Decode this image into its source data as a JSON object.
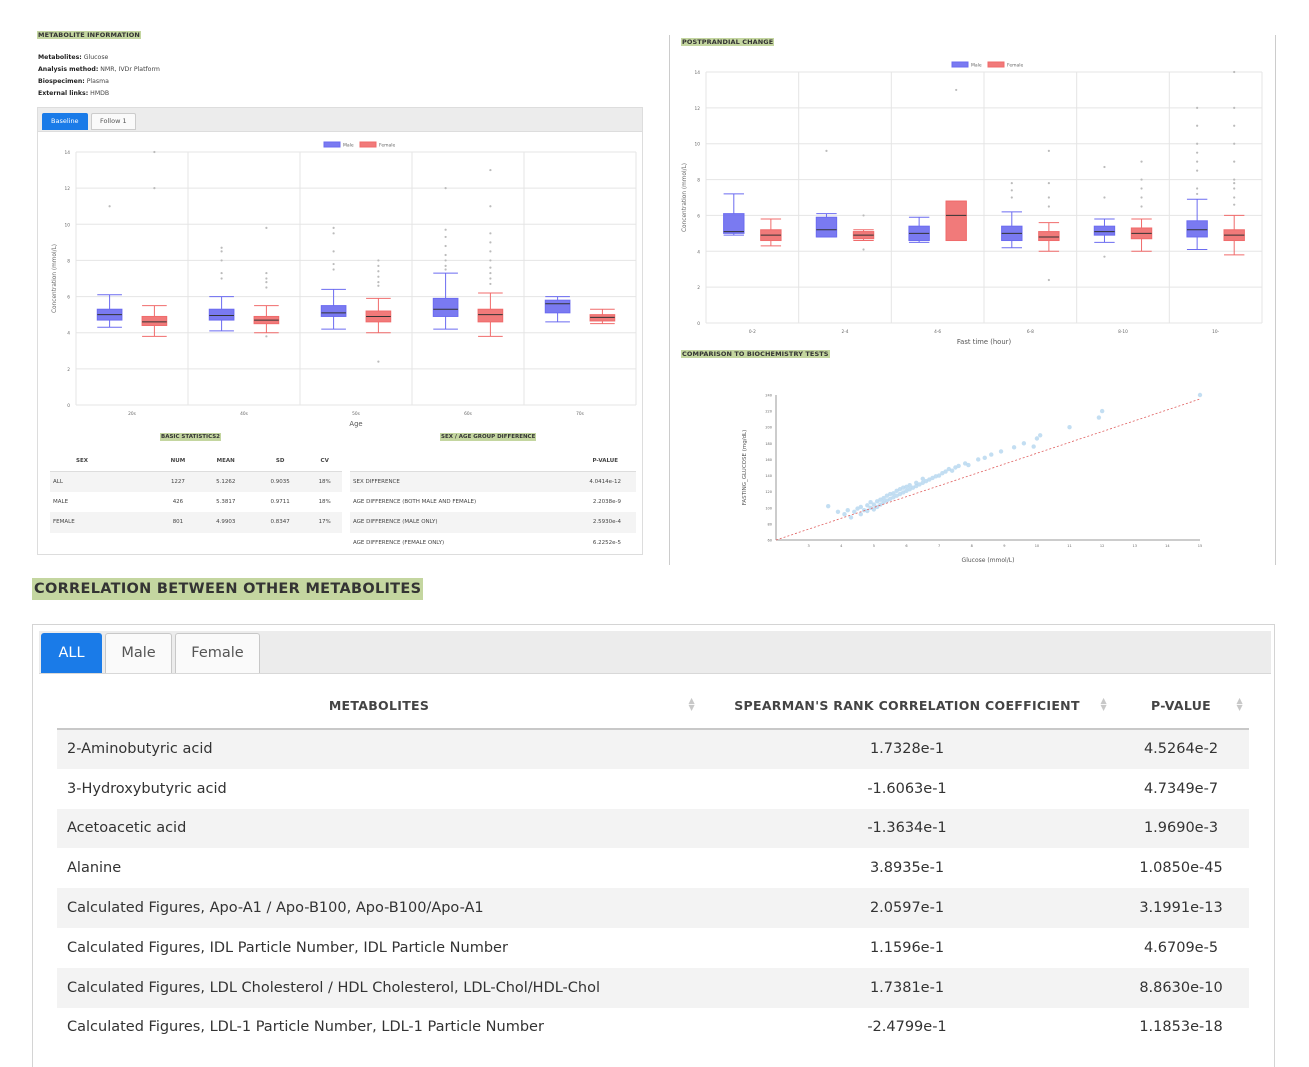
{
  "metabolite_info": {
    "title": "METABOLITE INFORMATION",
    "metabolites_label": "Metabolites:",
    "metabolites_value": "Glucose",
    "method_label": "Analysis method:",
    "method_value": "NMR, IVDr Platform",
    "biospecimen_label": "Biospecimen:",
    "biospecimen_value": "Plasma",
    "links_label": "External links:",
    "links_value": "HMDB"
  },
  "left_tabs": [
    {
      "label": "Baseline",
      "active": true
    },
    {
      "label": "Follow 1",
      "active": false
    }
  ],
  "colors": {
    "male": "#6b6bf0",
    "female": "#f06b6b",
    "accent": "#1a7be8",
    "highlight": "#c4d6a0",
    "scatter": "#b9d8f0",
    "regression": "#e06060"
  },
  "chart_data": [
    {
      "type": "box",
      "id": "age-boxplot",
      "xlabel": "Age",
      "ylabel": "Concentration (mmol/L)",
      "ylim": [
        0,
        14
      ],
      "y_ticks": [
        "0",
        "2",
        "4",
        "6",
        "8",
        "10",
        "12",
        "14"
      ],
      "categories": [
        "20s",
        "40s",
        "50s",
        "60s",
        "70s"
      ],
      "legend": [
        "Male",
        "Female"
      ],
      "series": [
        {
          "name": "Male",
          "boxes": [
            {
              "min": 4.3,
              "q1": 4.7,
              "median": 5.0,
              "q3": 5.3,
              "max": 6.1,
              "outliers": [
                11.0
              ]
            },
            {
              "min": 4.1,
              "q1": 4.7,
              "median": 4.95,
              "q3": 5.3,
              "max": 6.0,
              "outliers": [
                8.0,
                8.5,
                8.7,
                7.3,
                7.0
              ]
            },
            {
              "min": 4.2,
              "q1": 4.9,
              "median": 5.1,
              "q3": 5.5,
              "max": 6.4,
              "outliers": [
                9.8,
                9.5,
                8.5,
                7.8,
                7.5
              ]
            },
            {
              "min": 4.2,
              "q1": 4.9,
              "median": 5.3,
              "q3": 5.9,
              "max": 7.3,
              "outliers": [
                12.0,
                9.7,
                9.3,
                8.8,
                8.3,
                8.0,
                7.7,
                7.5
              ]
            },
            {
              "min": 4.6,
              "q1": 5.1,
              "median": 5.6,
              "q3": 5.8,
              "max": 6.0,
              "outliers": []
            }
          ]
        },
        {
          "name": "Female",
          "boxes": [
            {
              "min": 3.8,
              "q1": 4.4,
              "median": 4.6,
              "q3": 4.9,
              "max": 5.5,
              "outliers": [
                14.0,
                12.0
              ]
            },
            {
              "min": 4.0,
              "q1": 4.5,
              "median": 4.7,
              "q3": 4.9,
              "max": 5.5,
              "outliers": [
                9.8,
                7.3,
                7.0,
                6.8,
                6.5,
                3.8
              ]
            },
            {
              "min": 4.0,
              "q1": 4.6,
              "median": 4.9,
              "q3": 5.2,
              "max": 5.9,
              "outliers": [
                8.0,
                7.7,
                7.4,
                7.1,
                6.8,
                6.6,
                2.4
              ]
            },
            {
              "min": 3.8,
              "q1": 4.6,
              "median": 5.0,
              "q3": 5.3,
              "max": 6.2,
              "outliers": [
                13.0,
                11.0,
                9.5,
                9.0,
                8.5,
                8.0,
                7.6,
                7.3,
                7.0,
                6.7
              ]
            },
            {
              "min": 4.5,
              "q1": 4.65,
              "median": 4.85,
              "q3": 5.0,
              "max": 5.3,
              "outliers": []
            }
          ]
        }
      ]
    },
    {
      "type": "box",
      "id": "postprandial-boxplot",
      "title": "POSTPRANDIAL CHANGE",
      "xlabel": "Fast time (hour)",
      "ylabel": "Concentration (mmol/L)",
      "ylim": [
        0,
        14
      ],
      "y_ticks": [
        "0",
        "2",
        "4",
        "6",
        "8",
        "10",
        "12",
        "14"
      ],
      "categories": [
        "0-2",
        "2-4",
        "4-6",
        "6-8",
        "8-10",
        "10-"
      ],
      "legend": [
        "Male",
        "Female"
      ],
      "series": [
        {
          "name": "Male",
          "boxes": [
            {
              "min": 4.9,
              "q1": 5.0,
              "median": 5.1,
              "q3": 6.1,
              "max": 7.2,
              "outliers": []
            },
            {
              "min": 4.8,
              "q1": 4.8,
              "median": 5.2,
              "q3": 5.9,
              "max": 6.1,
              "outliers": [
                9.6
              ]
            },
            {
              "min": 4.5,
              "q1": 4.6,
              "median": 5.0,
              "q3": 5.4,
              "max": 5.9,
              "outliers": []
            },
            {
              "min": 4.2,
              "q1": 4.6,
              "median": 5.0,
              "q3": 5.4,
              "max": 6.2,
              "outliers": [
                7.8,
                7.4,
                7.0
              ]
            },
            {
              "min": 4.5,
              "q1": 4.9,
              "median": 5.1,
              "q3": 5.4,
              "max": 5.8,
              "outliers": [
                8.7,
                7.0,
                3.7
              ]
            },
            {
              "min": 4.1,
              "q1": 4.8,
              "median": 5.2,
              "q3": 5.7,
              "max": 6.9,
              "outliers": [
                12.0,
                11.0,
                10.0,
                9.5,
                9.0,
                8.5,
                7.5,
                7.2
              ]
            }
          ]
        },
        {
          "name": "Female",
          "boxes": [
            {
              "min": 4.3,
              "q1": 4.6,
              "median": 4.9,
              "q3": 5.2,
              "max": 5.8,
              "outliers": []
            },
            {
              "min": 4.6,
              "q1": 4.7,
              "median": 4.9,
              "q3": 5.1,
              "max": 5.2,
              "outliers": [
                6.0,
                4.1
              ]
            },
            {
              "min": 4.6,
              "q1": 4.6,
              "median": 6.0,
              "q3": 6.8,
              "max": 6.8,
              "outliers": [
                13.0
              ]
            },
            {
              "min": 4.0,
              "q1": 4.6,
              "median": 4.8,
              "q3": 5.1,
              "max": 5.6,
              "outliers": [
                9.6,
                7.8,
                7.0,
                6.5,
                2.4
              ]
            },
            {
              "min": 4.0,
              "q1": 4.7,
              "median": 5.0,
              "q3": 5.3,
              "max": 5.8,
              "outliers": [
                9.0,
                8.0,
                7.5,
                7.0,
                6.5
              ]
            },
            {
              "min": 3.8,
              "q1": 4.6,
              "median": 4.9,
              "q3": 5.2,
              "max": 6.0,
              "outliers": [
                14.0,
                12.0,
                11.0,
                10.0,
                9.0,
                8.0,
                7.8,
                7.5,
                7.0,
                6.6
              ]
            }
          ]
        }
      ]
    },
    {
      "type": "scatter",
      "id": "biochem-scatter",
      "title": "COMPARISON TO BIOCHEMISTRY TESTS",
      "xlabel": "Glucose (mmol/L)",
      "ylabel": "FASTING_GLUCOSE (mg/dL)",
      "xlim": [
        2,
        15
      ],
      "ylim": [
        60,
        240
      ],
      "x_ticks": [
        "3",
        "4",
        "5",
        "6",
        "7",
        "8",
        "9",
        "10",
        "11",
        "12",
        "13",
        "14",
        "15"
      ],
      "y_ticks": [
        "60",
        "80",
        "100",
        "120",
        "140",
        "160",
        "180",
        "200",
        "220",
        "240"
      ],
      "regression_line": [
        [
          2,
          60
        ],
        [
          15,
          235
        ]
      ],
      "points": [
        [
          3.6,
          102
        ],
        [
          3.9,
          95
        ],
        [
          4.1,
          92
        ],
        [
          4.2,
          97
        ],
        [
          4.3,
          88
        ],
        [
          4.4,
          95
        ],
        [
          4.5,
          99
        ],
        [
          4.6,
          92
        ],
        [
          4.6,
          101
        ],
        [
          4.7,
          97
        ],
        [
          4.8,
          103
        ],
        [
          4.8,
          96
        ],
        [
          4.9,
          100
        ],
        [
          4.9,
          107
        ],
        [
          5.0,
          98
        ],
        [
          5.0,
          104
        ],
        [
          5.1,
          101
        ],
        [
          5.1,
          108
        ],
        [
          5.2,
          104
        ],
        [
          5.2,
          110
        ],
        [
          5.3,
          107
        ],
        [
          5.3,
          112
        ],
        [
          5.4,
          109
        ],
        [
          5.4,
          115
        ],
        [
          5.5,
          111
        ],
        [
          5.5,
          117
        ],
        [
          5.6,
          113
        ],
        [
          5.6,
          118
        ],
        [
          5.7,
          115
        ],
        [
          5.7,
          121
        ],
        [
          5.8,
          117
        ],
        [
          5.8,
          123
        ],
        [
          5.9,
          119
        ],
        [
          5.9,
          125
        ],
        [
          6.0,
          121
        ],
        [
          6.0,
          126
        ],
        [
          6.1,
          123
        ],
        [
          6.1,
          128
        ],
        [
          6.2,
          125
        ],
        [
          6.3,
          127
        ],
        [
          6.3,
          131
        ],
        [
          6.4,
          129
        ],
        [
          6.5,
          131
        ],
        [
          6.5,
          136
        ],
        [
          6.6,
          133
        ],
        [
          6.7,
          135
        ],
        [
          6.8,
          137
        ],
        [
          6.9,
          139
        ],
        [
          7.0,
          140
        ],
        [
          7.1,
          143
        ],
        [
          7.2,
          145
        ],
        [
          7.3,
          148
        ],
        [
          7.4,
          146
        ],
        [
          7.5,
          150
        ],
        [
          7.6,
          152
        ],
        [
          7.8,
          155
        ],
        [
          7.9,
          153
        ],
        [
          8.2,
          160
        ],
        [
          8.4,
          162
        ],
        [
          8.6,
          166
        ],
        [
          8.9,
          170
        ],
        [
          9.3,
          175
        ],
        [
          9.6,
          180
        ],
        [
          9.9,
          176
        ],
        [
          10.0,
          186
        ],
        [
          10.1,
          190
        ],
        [
          11.0,
          200
        ],
        [
          11.9,
          212
        ],
        [
          12.0,
          220
        ],
        [
          15.0,
          240
        ]
      ]
    }
  ],
  "basic_stats": {
    "title": "BASIC STATISTICS2",
    "headers": [
      "SEX",
      "NUM",
      "MEAN",
      "SD",
      "CV"
    ],
    "rows": [
      [
        "ALL",
        "1227",
        "5.1262",
        "0.9035",
        "18%"
      ],
      [
        "MALE",
        "426",
        "5.3817",
        "0.9711",
        "18%"
      ],
      [
        "FEMALE",
        "801",
        "4.9903",
        "0.8347",
        "17%"
      ]
    ]
  },
  "group_diff": {
    "title": "SEX / AGE GROUP DIFFERENCE",
    "headers": [
      "",
      "P-VALUE"
    ],
    "rows": [
      [
        "SEX DIFFERENCE",
        "4.0414e-12"
      ],
      [
        "AGE DIFFERENCE (BOTH MALE AND FEMALE)",
        "2.2038e-9"
      ],
      [
        "AGE DIFFERENCE (MALE ONLY)",
        "2.5930e-4"
      ],
      [
        "AGE DIFFERENCE (FEMALE ONLY)",
        "6.2252e-5"
      ]
    ]
  },
  "correlation": {
    "title": "CORRELATION BETWEEN OTHER METABOLITES",
    "tabs": [
      {
        "label": "ALL",
        "active": true
      },
      {
        "label": "Male",
        "active": false
      },
      {
        "label": "Female",
        "active": false
      }
    ],
    "headers": [
      "METABOLITES",
      "SPEARMAN'S RANK CORRELATION COEFFICIENT",
      "P-VALUE"
    ],
    "rows": [
      [
        "2-Aminobutyric acid",
        "1.7328e-1",
        "4.5264e-2"
      ],
      [
        "3-Hydroxybutyric acid",
        "-1.6063e-1",
        "4.7349e-7"
      ],
      [
        "Acetoacetic acid",
        "-1.3634e-1",
        "1.9690e-3"
      ],
      [
        "Alanine",
        "3.8935e-1",
        "1.0850e-45"
      ],
      [
        "Calculated Figures, Apo-A1 / Apo-B100, Apo-B100/Apo-A1",
        "2.0597e-1",
        "3.1991e-13"
      ],
      [
        "Calculated Figures, IDL Particle Number, IDL Particle Number",
        "1.1596e-1",
        "4.6709e-5"
      ],
      [
        "Calculated Figures, LDL Cholesterol / HDL Cholesterol, LDL-Chol/HDL-Chol",
        "1.7381e-1",
        "8.8630e-10"
      ],
      [
        "Calculated Figures, LDL-1 Particle Number, LDL-1 Particle Number",
        "-2.4799e-1",
        "1.1853e-18"
      ]
    ]
  }
}
